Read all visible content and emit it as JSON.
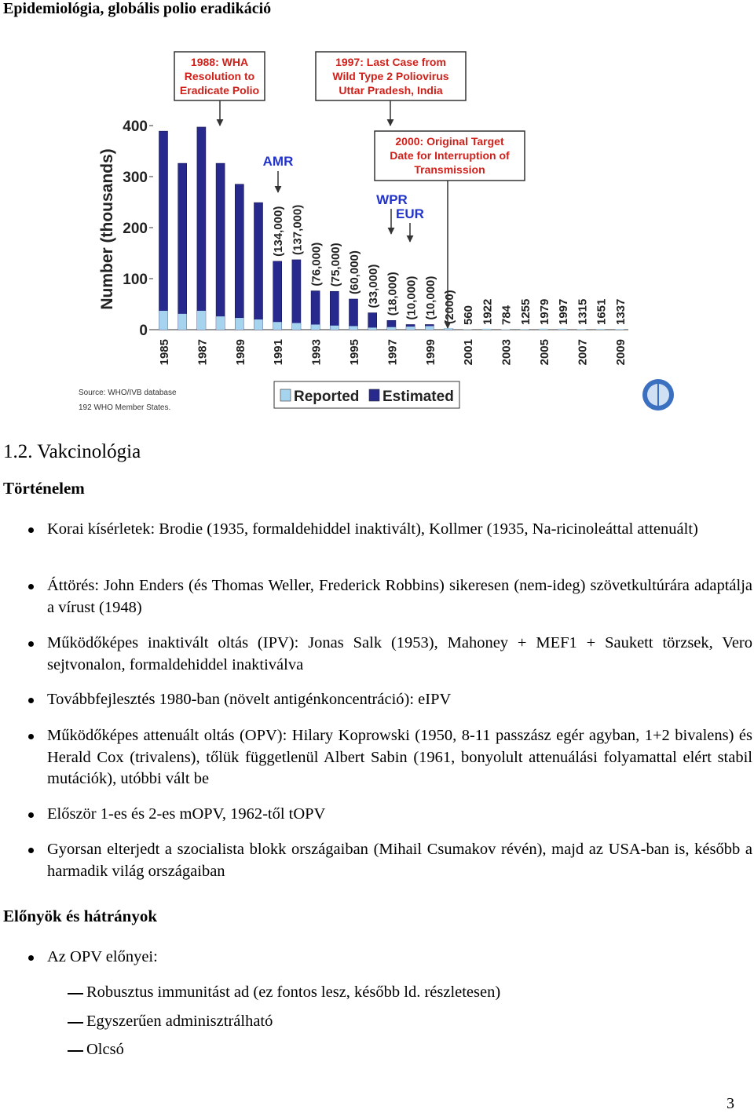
{
  "header": {
    "title": "Epidemiológia, globális polio eradikáció"
  },
  "chart_data": {
    "type": "bar",
    "categories": [
      "1985",
      null,
      "1987",
      null,
      "1989",
      null,
      "1991",
      null,
      "1993",
      null,
      "1995",
      null,
      "1997",
      null,
      "1999",
      null,
      "2001",
      null,
      "2003",
      null,
      "2005",
      null,
      "2007",
      null,
      "2009"
    ],
    "series": [
      {
        "name": "Estimated",
        "color": "#272a8c",
        "values": [
          389,
          326,
          397,
          326,
          285,
          249,
          134,
          137,
          76,
          75,
          60,
          33,
          18,
          10,
          10,
          2,
          null,
          null,
          null,
          null,
          null,
          null,
          null,
          null,
          null
        ],
        "value_labels": [
          null,
          null,
          null,
          null,
          null,
          null,
          "(134,000)",
          "(137,000)",
          "(76,000)",
          "(75,000)",
          "(60,000)",
          "(33,000)",
          "(18,000)",
          "(10,000)",
          "(10,000)",
          "(2000)",
          null,
          null,
          null,
          null,
          null,
          null,
          null,
          null,
          null
        ]
      },
      {
        "name": "Reported",
        "color": "#a6d4ee",
        "values": [
          37,
          31,
          37,
          26,
          23,
          20,
          15,
          13,
          10,
          8,
          7,
          4,
          5,
          6,
          7,
          3,
          0.56,
          1.922,
          0.784,
          1.255,
          1.979,
          1.997,
          1.315,
          1.651,
          1.337
        ],
        "value_labels": [
          null,
          null,
          null,
          null,
          null,
          null,
          null,
          null,
          null,
          null,
          null,
          null,
          null,
          null,
          null,
          null,
          "560",
          "1922",
          "784",
          "1255",
          "1979",
          "1997",
          "1315",
          "1651",
          "1337"
        ]
      }
    ],
    "ylim": [
      0,
      400
    ],
    "yticks": [
      0,
      100,
      200,
      300,
      400
    ],
    "ylabel": "Number (thousands)",
    "annotations": [
      {
        "lines": [
          "1988: WHA",
          "Resolution to",
          "Eradicate Polio"
        ]
      },
      {
        "lines": [
          "1997: Last Case from",
          "Wild Type 2 Poliovirus",
          "Uttar Pradesh, India"
        ]
      },
      {
        "lines": [
          "2000: Original Target",
          "Date for Interruption of",
          "Transmission"
        ]
      },
      {
        "lines": [
          "AMR"
        ]
      },
      {
        "lines": [
          "WPR"
        ]
      },
      {
        "lines": [
          "EUR"
        ]
      }
    ],
    "source": [
      "Source: WHO/IVB database",
      "192 WHO Member States."
    ]
  },
  "section": {
    "title": "1.2. Vakcinológia"
  },
  "subsections": [
    {
      "title": "Történelem",
      "items": [
        {
          "text": "Korai kísérletek: Brodie (1935, formaldehiddel inaktivált), Kollmer (1935, Na-ricinoleáttal attenuált)"
        },
        {
          "text": "Áttörés: John Enders (és Thomas Weller, Frederick Robbins) sikeresen (nem-ideg) szövetkultúrára adaptálja a vírust (1948)"
        },
        {
          "text": "Működőképes inaktivált oltás (IPV): Jonas Salk (1953), Mahoney + MEF1 + Saukett törzsek, Vero sejtvonalon, formaldehiddel inaktiválva"
        },
        {
          "text": "Továbbfejlesztés 1980-ban (növelt antigénkoncentráció): eIPV"
        },
        {
          "text": "Működőképes attenuált oltás (OPV): Hilary Koprowski (1950, 8-11 passzász egér agyban, 1+2 bivalens) és Herald Cox (trivalens), tőlük függetlenül Albert Sabin (1961, bonyolult attenuálási folyamattal elért stabil mutációk), utóbbi vált be"
        },
        {
          "text": "Először 1-es és 2-es mOPV, 1962-től tOPV"
        },
        {
          "text": "Gyorsan elterjedt a szocialista blokk országaiban (Mihail Csumakov révén), majd az USA-ban is, később a harmadik világ országaiban"
        }
      ]
    },
    {
      "title": "Előnyök és hátrányok",
      "items": [
        {
          "text": "Az OPV előnyei:",
          "subitems": [
            "Robusztus immunitást ad (ez fontos lesz, később ld. részletesen)",
            "Egyszerűen adminisztrálható",
            "Olcsó"
          ]
        }
      ]
    }
  ],
  "page_number": "3"
}
